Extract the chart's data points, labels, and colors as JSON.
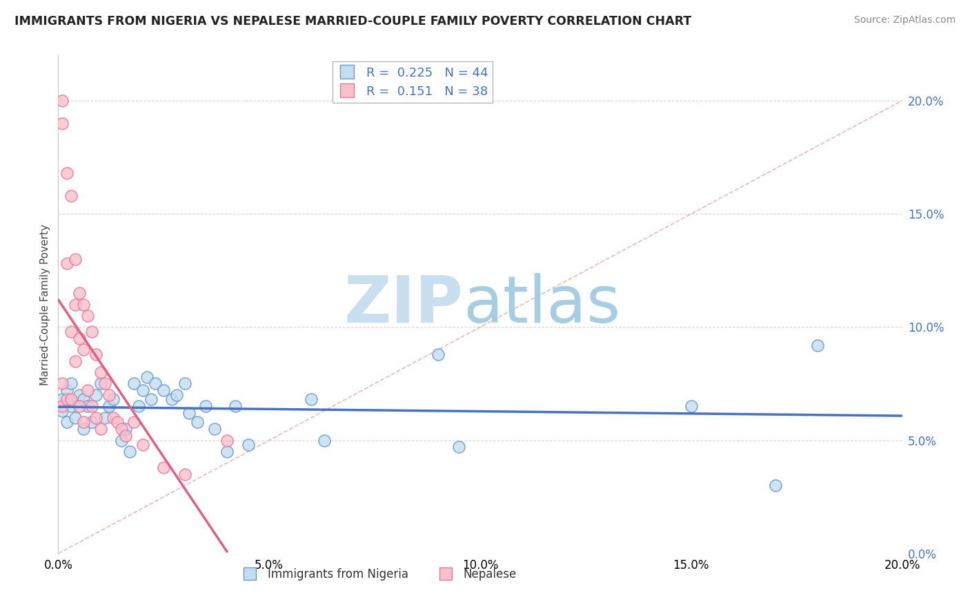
{
  "title": "IMMIGRANTS FROM NIGERIA VS NEPALESE MARRIED-COUPLE FAMILY POVERTY CORRELATION CHART",
  "source": "Source: ZipAtlas.com",
  "ylabel": "Married-Couple Family Poverty",
  "series1_label": "Immigrants from Nigeria",
  "series2_label": "Nepalese",
  "series1_R": 0.225,
  "series1_N": 44,
  "series2_R": 0.151,
  "series2_N": 38,
  "series1_color": "#c5ddf0",
  "series2_color": "#f8c0cc",
  "series1_edge_color": "#6699cc",
  "series2_edge_color": "#e87898",
  "series1_line_color": "#4472c4",
  "series2_line_color": "#e06080",
  "diag_line_color": "#e8b0b8",
  "right_tick_color": "#4472c4",
  "xmin": 0.0,
  "xmax": 0.2,
  "ymin": 0.0,
  "ymax": 0.22,
  "ytick_step": 0.05,
  "xtick_step": 0.05,
  "series1_x": [
    0.001,
    0.001,
    0.002,
    0.002,
    0.003,
    0.003,
    0.004,
    0.005,
    0.006,
    0.006,
    0.007,
    0.008,
    0.009,
    0.01,
    0.011,
    0.012,
    0.013,
    0.015,
    0.016,
    0.017,
    0.018,
    0.019,
    0.02,
    0.021,
    0.022,
    0.023,
    0.025,
    0.027,
    0.028,
    0.03,
    0.031,
    0.033,
    0.035,
    0.037,
    0.04,
    0.042,
    0.045,
    0.06,
    0.063,
    0.09,
    0.095,
    0.15,
    0.17,
    0.18
  ],
  "series1_y": [
    0.068,
    0.063,
    0.072,
    0.058,
    0.075,
    0.065,
    0.06,
    0.07,
    0.055,
    0.068,
    0.065,
    0.058,
    0.07,
    0.075,
    0.06,
    0.065,
    0.068,
    0.05,
    0.055,
    0.045,
    0.075,
    0.065,
    0.072,
    0.078,
    0.068,
    0.075,
    0.072,
    0.068,
    0.07,
    0.075,
    0.062,
    0.058,
    0.065,
    0.055,
    0.045,
    0.065,
    0.048,
    0.068,
    0.05,
    0.088,
    0.047,
    0.065,
    0.03,
    0.092
  ],
  "series2_x": [
    0.001,
    0.001,
    0.001,
    0.001,
    0.002,
    0.002,
    0.002,
    0.003,
    0.003,
    0.003,
    0.004,
    0.004,
    0.004,
    0.005,
    0.005,
    0.005,
    0.006,
    0.006,
    0.006,
    0.007,
    0.007,
    0.008,
    0.008,
    0.009,
    0.009,
    0.01,
    0.01,
    0.011,
    0.012,
    0.013,
    0.014,
    0.015,
    0.016,
    0.018,
    0.02,
    0.025,
    0.03,
    0.04
  ],
  "series2_y": [
    0.2,
    0.19,
    0.075,
    0.065,
    0.168,
    0.128,
    0.068,
    0.158,
    0.098,
    0.068,
    0.13,
    0.11,
    0.085,
    0.115,
    0.095,
    0.065,
    0.11,
    0.09,
    0.058,
    0.105,
    0.072,
    0.098,
    0.065,
    0.088,
    0.06,
    0.08,
    0.055,
    0.075,
    0.07,
    0.06,
    0.058,
    0.055,
    0.052,
    0.058,
    0.048,
    0.038,
    0.035,
    0.05
  ]
}
